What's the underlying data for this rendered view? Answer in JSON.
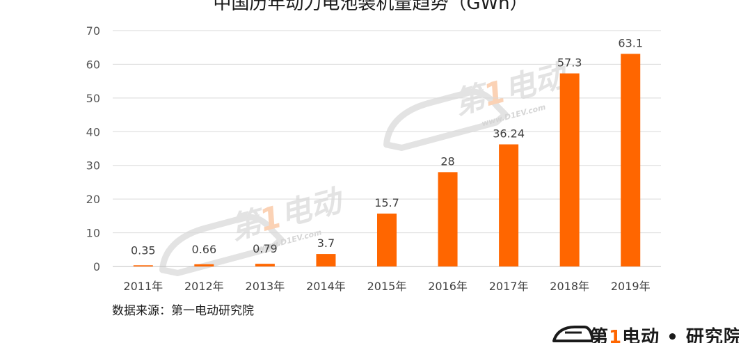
{
  "chart_data": {
    "type": "bar",
    "title": "中国历年动力电池装机量趋势（GWh）",
    "categories": [
      "2011年",
      "2012年",
      "2013年",
      "2014年",
      "2015年",
      "2016年",
      "2017年",
      "2018年",
      "2019年"
    ],
    "values": [
      0.35,
      0.66,
      0.79,
      3.7,
      15.7,
      28,
      36.24,
      57.3,
      63.1
    ],
    "value_labels": [
      "0.35",
      "0.66",
      "0.79",
      "3.7",
      "15.7",
      "28",
      "36.24",
      "57.3",
      "63.1"
    ],
    "ylim": [
      0,
      70
    ],
    "yticks": [
      0,
      10,
      20,
      30,
      40,
      50,
      60,
      70
    ],
    "ytick_labels": [
      "0",
      "10",
      "20",
      "30",
      "40",
      "50",
      "60",
      "70"
    ],
    "xlabel": "",
    "ylabel": "",
    "grid": true,
    "legend": "none",
    "bar_color": "#ff6600"
  },
  "source_note": "数据来源：第一电动研究院",
  "watermark": {
    "text_a": "第",
    "text_one": "1",
    "text_b": "电动",
    "url": "www.D1EV.com",
    "color": "#e0e0e0"
  },
  "logo": {
    "part_a": "第",
    "part_one": "1",
    "part_b": "电动 • 研究院",
    "accent_color": "#ff6600",
    "icon": "car-icon"
  }
}
